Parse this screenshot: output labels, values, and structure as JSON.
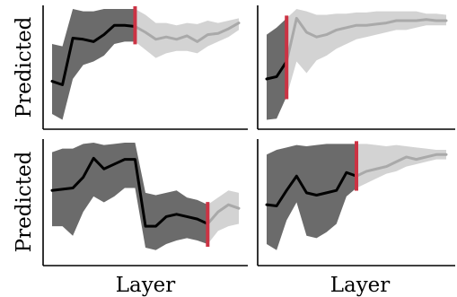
{
  "figure": {
    "xlabel": "Layer",
    "ylabel": "Predicted",
    "colors": {
      "pre_line": "#000000",
      "pre_band": "#6b6b6b",
      "post_line": "#a9a9a9",
      "post_band": "#d3d3d3",
      "cut_marker": "#cc3344"
    }
  },
  "chart_data": [
    {
      "type": "line",
      "grid": false,
      "ylabel": "Predicted",
      "xlabel": "",
      "x_range": [
        0,
        18
      ],
      "y_range": [
        0,
        1
      ],
      "cut_x": 8,
      "x": [
        0,
        1,
        2,
        3,
        4,
        5,
        6,
        7,
        8,
        9,
        10,
        11,
        12,
        13,
        14,
        15,
        16,
        17,
        18
      ],
      "mean": [
        0.38,
        0.35,
        0.75,
        0.74,
        0.72,
        0.78,
        0.86,
        0.86,
        0.85,
        0.8,
        0.74,
        0.76,
        0.74,
        0.77,
        0.72,
        0.78,
        0.79,
        0.83,
        0.88
      ],
      "lower": [
        0.1,
        0.05,
        0.4,
        0.52,
        0.55,
        0.6,
        0.7,
        0.72,
        0.72,
        0.65,
        0.58,
        0.62,
        0.64,
        0.64,
        0.62,
        0.68,
        0.72,
        0.76,
        0.82
      ],
      "upper": [
        0.7,
        0.68,
        1.0,
        0.98,
        0.98,
        1.0,
        1.0,
        1.0,
        1.0,
        0.95,
        0.88,
        0.88,
        0.86,
        0.88,
        0.87,
        0.9,
        0.88,
        0.9,
        0.92
      ]
    },
    {
      "type": "line",
      "grid": false,
      "ylabel": "",
      "xlabel": "",
      "x_range": [
        0,
        18
      ],
      "y_range": [
        0,
        1
      ],
      "cut_x": 2,
      "x": [
        0,
        1,
        2,
        3,
        4,
        5,
        6,
        7,
        8,
        9,
        10,
        11,
        12,
        13,
        14,
        15,
        16,
        17,
        18
      ],
      "mean": [
        0.4,
        0.42,
        0.55,
        0.92,
        0.8,
        0.76,
        0.78,
        0.82,
        0.84,
        0.86,
        0.86,
        0.87,
        0.88,
        0.9,
        0.9,
        0.9,
        0.91,
        0.9,
        0.9
      ],
      "lower": [
        0.05,
        0.06,
        0.25,
        0.55,
        0.45,
        0.56,
        0.6,
        0.66,
        0.7,
        0.74,
        0.76,
        0.78,
        0.8,
        0.82,
        0.82,
        0.84,
        0.86,
        0.86,
        0.86
      ],
      "upper": [
        0.78,
        0.84,
        0.92,
        1.0,
        0.98,
        0.95,
        0.95,
        0.96,
        0.96,
        0.97,
        0.97,
        0.98,
        0.98,
        0.98,
        0.98,
        0.98,
        0.96,
        0.96,
        0.95
      ]
    },
    {
      "type": "line",
      "grid": false,
      "ylabel": "Predicted",
      "xlabel": "Layer",
      "x_range": [
        0,
        18
      ],
      "y_range": [
        0,
        1
      ],
      "cut_x": 15,
      "x": [
        0,
        1,
        2,
        3,
        4,
        5,
        6,
        7,
        8,
        9,
        10,
        11,
        12,
        13,
        14,
        15,
        16,
        17,
        18
      ],
      "mean": [
        0.6,
        0.61,
        0.62,
        0.71,
        0.87,
        0.78,
        0.82,
        0.86,
        0.86,
        0.3,
        0.3,
        0.38,
        0.4,
        0.38,
        0.36,
        0.32,
        0.42,
        0.48,
        0.45
      ],
      "lower": [
        0.3,
        0.3,
        0.22,
        0.42,
        0.55,
        0.5,
        0.55,
        0.62,
        0.62,
        0.12,
        0.1,
        0.15,
        0.18,
        0.2,
        0.18,
        0.15,
        0.26,
        0.3,
        0.32
      ],
      "upper": [
        0.92,
        0.95,
        0.95,
        0.99,
        1.0,
        0.98,
        0.99,
        1.0,
        1.0,
        0.58,
        0.56,
        0.58,
        0.6,
        0.54,
        0.52,
        0.48,
        0.54,
        0.6,
        0.58
      ]
    },
    {
      "type": "line",
      "grid": false,
      "ylabel": "",
      "xlabel": "Layer",
      "x_range": [
        0,
        18
      ],
      "y_range": [
        0,
        1
      ],
      "cut_x": 9,
      "x": [
        0,
        1,
        2,
        3,
        4,
        5,
        6,
        7,
        8,
        9,
        10,
        11,
        12,
        13,
        14,
        15,
        16,
        17,
        18
      ],
      "mean": [
        0.48,
        0.47,
        0.6,
        0.72,
        0.58,
        0.56,
        0.58,
        0.6,
        0.75,
        0.72,
        0.76,
        0.78,
        0.8,
        0.84,
        0.88,
        0.86,
        0.88,
        0.9,
        0.9
      ],
      "lower": [
        0.15,
        0.1,
        0.35,
        0.5,
        0.22,
        0.2,
        0.25,
        0.32,
        0.55,
        0.62,
        0.66,
        0.7,
        0.74,
        0.76,
        0.8,
        0.82,
        0.84,
        0.86,
        0.86
      ],
      "upper": [
        0.9,
        0.94,
        0.96,
        0.98,
        0.97,
        0.98,
        0.99,
        0.99,
        0.99,
        0.99,
        0.99,
        0.98,
        0.97,
        0.98,
        0.97,
        0.96,
        0.95,
        0.94,
        0.94
      ]
    }
  ]
}
